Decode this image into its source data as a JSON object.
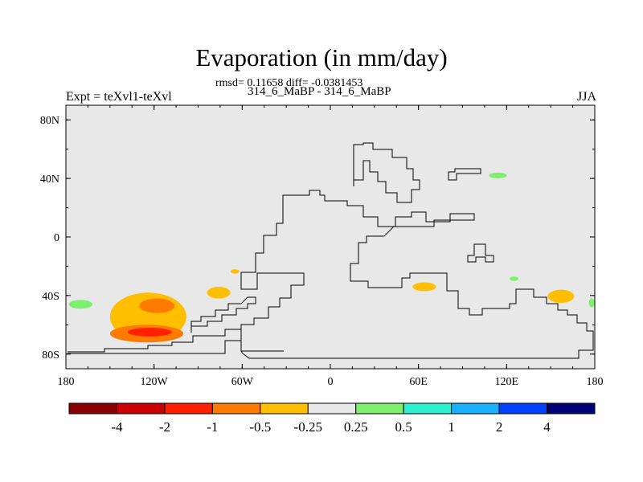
{
  "chart_data": {
    "type": "contour-map",
    "title": "Evaporation (in mm/day)",
    "stats_line": "rmsd= 0.11658 diff= -0.0381453",
    "subtitle": "314_6_MaBP - 314_6_MaBP",
    "left_label": "Expt = teXvl1-teXvl",
    "right_label": "JJA",
    "x_axis": {
      "range": [
        -180,
        180
      ],
      "ticks": [
        {
          "value": -180,
          "label": "180"
        },
        {
          "value": -120,
          "label": "120W"
        },
        {
          "value": -60,
          "label": "60W"
        },
        {
          "value": 0,
          "label": "0"
        },
        {
          "value": 60,
          "label": "60E"
        },
        {
          "value": 120,
          "label": "120E"
        },
        {
          "value": 180,
          "label": "180"
        }
      ]
    },
    "y_axis": {
      "range": [
        -90,
        90
      ],
      "ticks": [
        {
          "value": 80,
          "label": "80N"
        },
        {
          "value": 40,
          "label": "40N"
        },
        {
          "value": 0,
          "label": "0"
        },
        {
          "value": -40,
          "label": "40S"
        },
        {
          "value": -80,
          "label": "80S"
        }
      ]
    },
    "colorbar": {
      "colors": [
        "#8b0000",
        "#cc0000",
        "#ff2000",
        "#ff7b00",
        "#ffbf00",
        "#e8e8e8",
        "#7cf06e",
        "#2ef0d0",
        "#1ab0ff",
        "#0040ff",
        "#00007a"
      ],
      "labels": [
        "-4",
        "-2",
        "-1",
        "-0.5",
        "-0.25",
        "0.25",
        "0.5",
        "1",
        "2",
        "4"
      ]
    },
    "anomalies": [
      {
        "name": "SE Pacific outer (<-0.25)",
        "level": -0.25,
        "lon_range": [
          -150,
          -98
        ],
        "lat_range": [
          -71,
          -38
        ]
      },
      {
        "name": "SE Pacific band A (<-0.5)",
        "level": -0.5,
        "lon_range": [
          -130,
          -106
        ],
        "lat_range": [
          -52,
          -42
        ]
      },
      {
        "name": "SE Pacific band B (<-0.5)",
        "level": -0.5,
        "lon_range": [
          -150,
          -100
        ],
        "lat_range": [
          -72,
          -60
        ]
      },
      {
        "name": "SE Pacific core (<-1)",
        "level": -1,
        "lon_range": [
          -138,
          -108
        ],
        "lat_range": [
          -68,
          -62
        ]
      },
      {
        "name": "S Pacific blob (<-0.25)",
        "level": -0.25,
        "lon_range": [
          -84,
          -68
        ],
        "lat_range": [
          -42,
          -34
        ]
      },
      {
        "name": "S Atlantic small (<-0.25)",
        "level": -0.25,
        "lon_range": [
          -68,
          -62
        ],
        "lat_range": [
          -25,
          -22
        ]
      },
      {
        "name": "S Indian Ocean blob (<-0.25)",
        "level": -0.25,
        "lon_range": [
          56,
          72
        ],
        "lat_range": [
          -37,
          -31
        ]
      },
      {
        "name": "SW Pacific blob (<-0.25)",
        "level": -0.25,
        "lon_range": [
          148,
          166
        ],
        "lat_range": [
          -45,
          -36
        ]
      },
      {
        "name": "S Pacific W (>0.25)",
        "level": 0.25,
        "lon_range": [
          -178,
          -162
        ],
        "lat_range": [
          -49,
          -43
        ]
      },
      {
        "name": "N Pacific (>0.25)",
        "level": 0.25,
        "lon_range": [
          108,
          120
        ],
        "lat_range": [
          40,
          44
        ]
      },
      {
        "name": "S Indian E (>0.25)",
        "level": 0.25,
        "lon_range": [
          122,
          128
        ],
        "lat_range": [
          -30,
          -27
        ]
      },
      {
        "name": "E edge (>0.25)",
        "level": 0.25,
        "lon_range": [
          176,
          180
        ],
        "lat_range": [
          -48,
          -42
        ]
      }
    ]
  }
}
